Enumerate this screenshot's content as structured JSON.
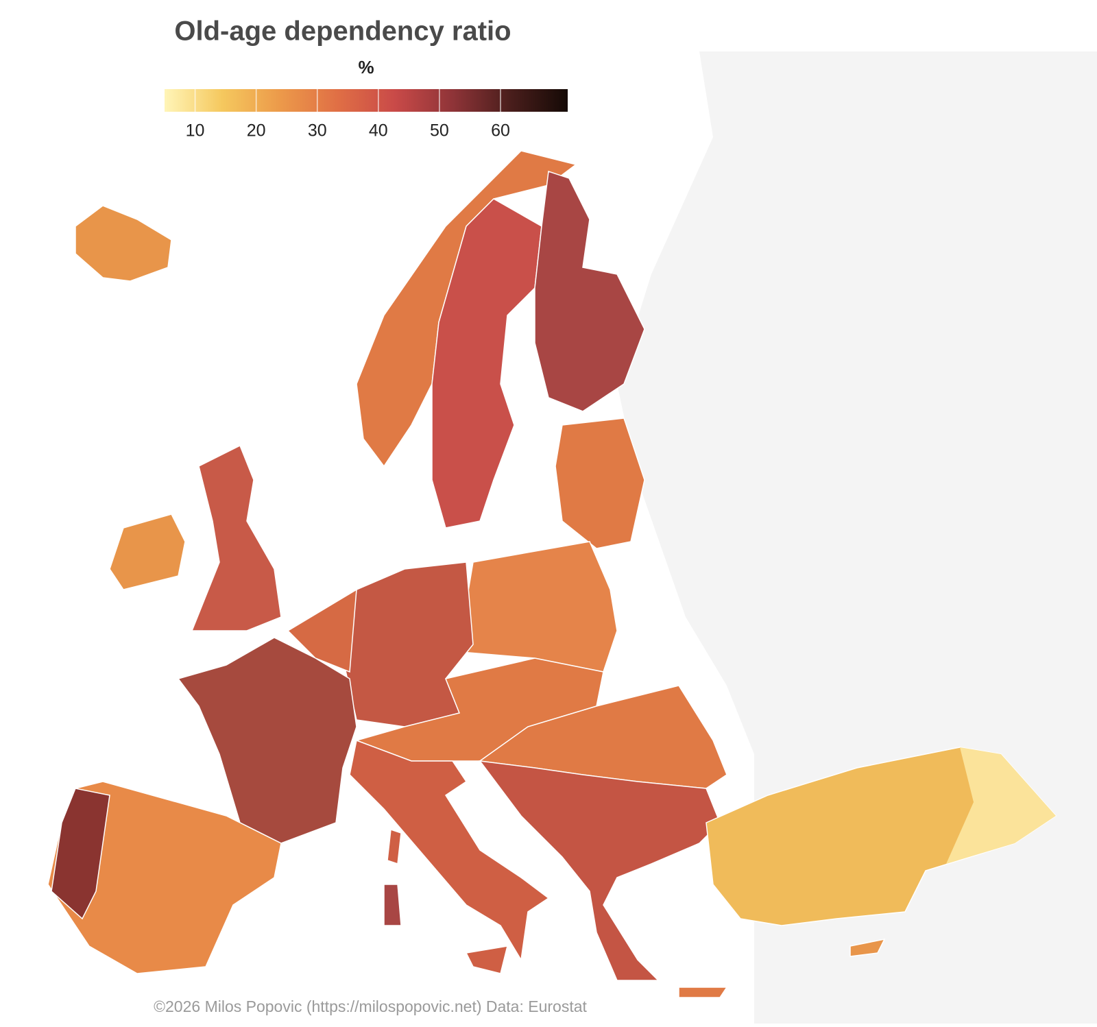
{
  "title": "Old-age dependency ratio",
  "legend": {
    "title": "%",
    "range": [
      5,
      71
    ],
    "ticks": [
      10,
      20,
      30,
      40,
      50,
      60
    ],
    "colors": [
      "#fff5b8",
      "#f5c85e",
      "#ec9a4a",
      "#e06f45",
      "#c94a48",
      "#8f3438",
      "#4a1e1c",
      "#150a06"
    ]
  },
  "caption": "©2026 Milos Popovic (https://milospopovic.net) Data: Eurostat"
}
